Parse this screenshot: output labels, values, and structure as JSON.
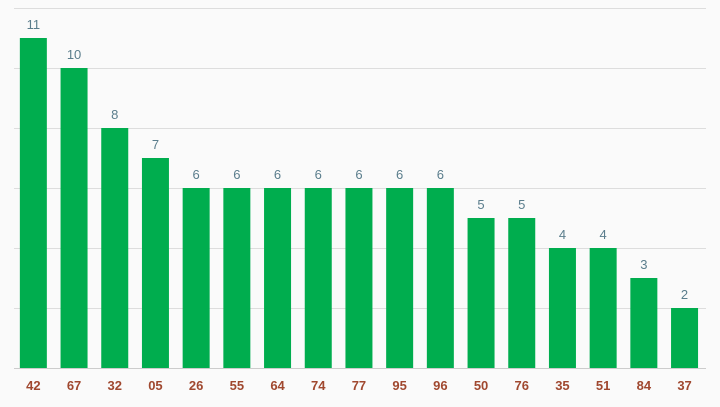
{
  "chart_data": {
    "type": "bar",
    "title": "",
    "xlabel": "",
    "ylabel": "",
    "categories": [
      "42",
      "67",
      "32",
      "05",
      "26",
      "55",
      "64",
      "74",
      "77",
      "95",
      "96",
      "50",
      "76",
      "35",
      "51",
      "84",
      "37"
    ],
    "values": [
      11,
      10,
      8,
      7,
      6,
      6,
      6,
      6,
      6,
      6,
      6,
      5,
      5,
      4,
      4,
      3,
      2
    ],
    "ylim": [
      0,
      12
    ],
    "grid": true,
    "data_labels": true,
    "legend": "none"
  },
  "colors": {
    "bar": "#00ad4e",
    "data_label": "#5a7d8c",
    "tick_label": "#a0482f",
    "background": "#fafafa"
  }
}
